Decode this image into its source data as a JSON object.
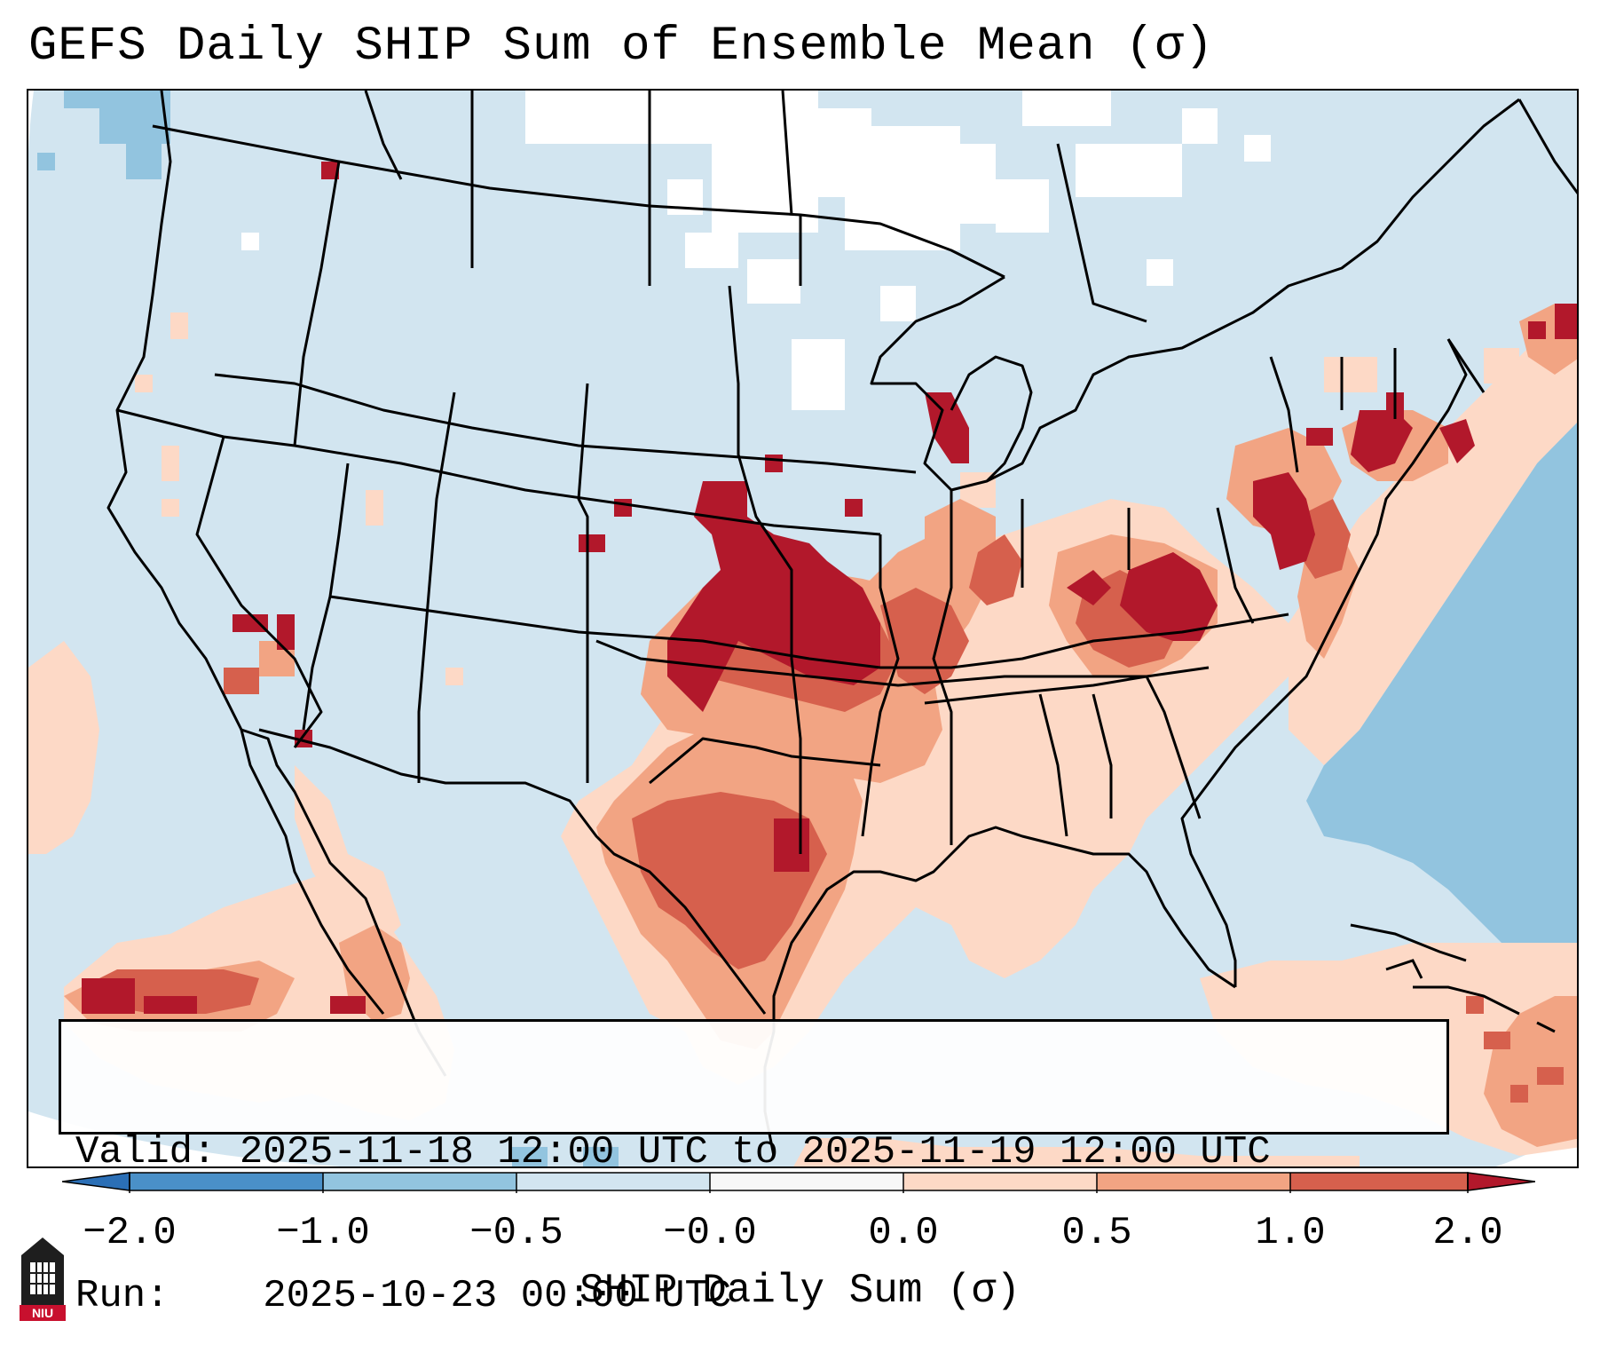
{
  "title": "GEFS Daily SHIP Sum of Ensemble Mean (σ)",
  "info": {
    "valid_label": "Valid:",
    "valid_value": "2025-11-18 12:00 UTC to 2025-11-19 12:00 UTC",
    "run_label": "Run:",
    "run_value": "2025-10-23 00:00 UTC"
  },
  "colorbar": {
    "label": "SHIP Daily Sum (σ)",
    "ticks": [
      "−2.0",
      "−1.0",
      "−0.5",
      "−0.0",
      "0.0",
      "0.5",
      "1.0",
      "2.0"
    ],
    "bins": [
      {
        "range": "< -2.0",
        "color": "#2b6fb6"
      },
      {
        "range": "-2.0 to -1.0",
        "color": "#4a90c8"
      },
      {
        "range": "-1.0 to -0.5",
        "color": "#92c4df"
      },
      {
        "range": "-0.5 to -0.0",
        "color": "#d2e5f0"
      },
      {
        "range": "-0.0 to 0.0",
        "color": "#f7f7f7"
      },
      {
        "range": "0.0 to 0.5",
        "color": "#fdd9c6"
      },
      {
        "range": "0.5 to 1.0",
        "color": "#f2a483"
      },
      {
        "range": "1.0 to 2.0",
        "color": "#d6604d"
      },
      {
        "range": "> 2.0",
        "color": "#b2182b"
      }
    ]
  },
  "colors": {
    "background_field": "#d2e5f0",
    "ocean_negative": "#92c4df",
    "neutral": "#ffffff",
    "light_positive": "#fdd9c6",
    "moderate_positive": "#f2a483",
    "strong_positive": "#d6604d",
    "extreme_positive": "#b2182b",
    "borders": "#000000"
  },
  "logo": {
    "text": "NIU",
    "icon": "niu-logo-icon"
  }
}
